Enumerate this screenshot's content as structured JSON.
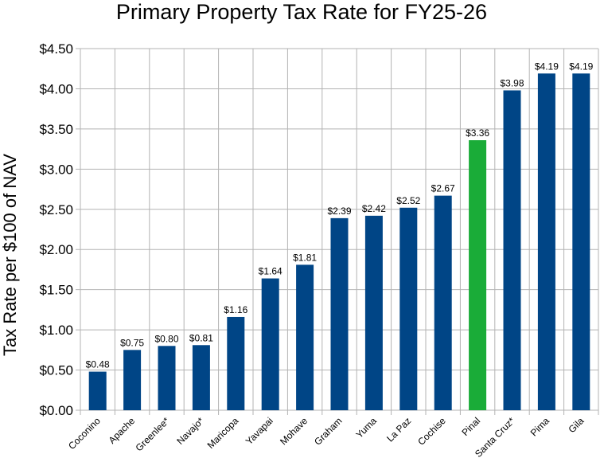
{
  "chart_data": {
    "type": "bar",
    "title": "Primary Property Tax Rate for FY25-26",
    "xlabel": "",
    "ylabel": "Tax Rate per $100 of NAV",
    "ylim": [
      0,
      4.5
    ],
    "ytick_step": 0.5,
    "ytick_labels": [
      "$0.00",
      "$0.50",
      "$1.00",
      "$1.50",
      "$2.00",
      "$2.50",
      "$3.00",
      "$3.50",
      "$4.00",
      "$4.50"
    ],
    "grid": true,
    "categories": [
      "Coconino",
      "Apache",
      "Greenlee*",
      "Navajo*",
      "Maricopa",
      "Yavapai",
      "Mohave",
      "Graham",
      "Yuma",
      "La Paz",
      "Cochise",
      "Pinal",
      "Santa Cruz*",
      "Pima",
      "Gila"
    ],
    "values": [
      0.48,
      0.75,
      0.8,
      0.81,
      1.16,
      1.64,
      1.81,
      2.39,
      2.42,
      2.52,
      2.67,
      3.36,
      3.98,
      4.19,
      4.19
    ],
    "data_labels": [
      "$0.48",
      "$0.75",
      "$0.80",
      "$0.81",
      "$1.16",
      "$1.64",
      "$1.81",
      "$2.39",
      "$2.42",
      "$2.52",
      "$2.67",
      "$3.36",
      "$3.98",
      "$4.19",
      "$4.19"
    ],
    "bar_color": "#004586",
    "highlight_category": "Pinal",
    "highlight_color": "#1aac38",
    "grid_color": "#b3b3b3"
  }
}
